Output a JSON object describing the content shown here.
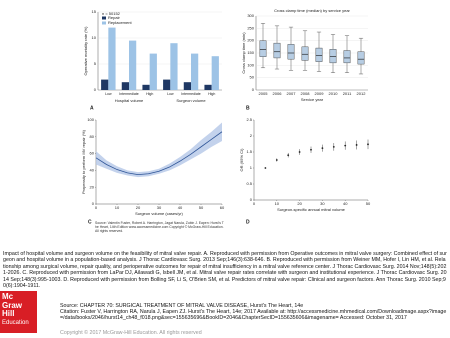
{
  "chart_data": [
    {
      "type": "bar",
      "panel": "A",
      "y_label": "Operative mortality rate (%)",
      "legend_title": "n = 50152",
      "categories": [
        "Low",
        "Intermediate",
        "High",
        "Low",
        "Intermediate",
        "High"
      ],
      "groups": [
        "Hospital volume",
        "Surgeon volume"
      ],
      "series": [
        {
          "name": "Repair",
          "color": "#1f3864",
          "values": [
            2,
            1.5,
            1,
            2,
            1.5,
            1
          ]
        },
        {
          "name": "Replacement",
          "color": "#9dc3e6",
          "values": [
            12,
            9.5,
            7,
            9,
            7,
            6.5
          ]
        }
      ],
      "ylim": [
        0,
        15
      ],
      "yticks": [
        0,
        5,
        10,
        15
      ],
      "grid": true
    },
    {
      "type": "box",
      "panel": "B",
      "title": "Cross clamp time (median) by service year",
      "x_label": "Service year",
      "y_label": "Cross clamp time (min)",
      "categories": [
        "2005",
        "2006",
        "2007",
        "2008",
        "2009",
        "2010",
        "2011",
        "2012"
      ],
      "min": [
        90,
        85,
        80,
        80,
        75,
        70,
        70,
        65
      ],
      "q1": [
        135,
        130,
        125,
        120,
        115,
        110,
        110,
        105
      ],
      "median": [
        165,
        155,
        150,
        145,
        140,
        135,
        130,
        125
      ],
      "q3": [
        200,
        190,
        185,
        175,
        170,
        165,
        160,
        155
      ],
      "max": [
        270,
        260,
        255,
        240,
        235,
        225,
        220,
        210
      ],
      "color": "#b7cde3",
      "ylim": [
        0,
        300
      ],
      "yticks": [
        0,
        50,
        100,
        150,
        200,
        250,
        300
      ],
      "grid": true
    },
    {
      "type": "band",
      "panel": "C",
      "x_label": "Surgeon volume (cases/yr)",
      "y_label": "Propensity to perform MV repair (%)",
      "x": [
        0,
        5,
        10,
        15,
        20,
        25,
        30,
        35,
        40,
        45,
        50,
        55,
        60
      ],
      "values": [
        55,
        47,
        41,
        37,
        35,
        36,
        39,
        44,
        51,
        59,
        68,
        77,
        86
      ],
      "lower": [
        47,
        42,
        37,
        34,
        32,
        33,
        36,
        40,
        46,
        53,
        60,
        68,
        75
      ],
      "upper": [
        63,
        52,
        45,
        40,
        38,
        39,
        42,
        48,
        56,
        65,
        76,
        86,
        97
      ],
      "color": "#2f5597",
      "band_color": "#b4c7e7",
      "xlim": [
        0,
        60
      ],
      "xticks": [
        0,
        10,
        20,
        30,
        40,
        50,
        60
      ],
      "ylim": [
        0,
        100
      ],
      "yticks": [
        0,
        20,
        40,
        60,
        80,
        100
      ]
    },
    {
      "type": "errorbar",
      "panel": "D",
      "x_label": "Surgeon-specific annual mitral volume",
      "y_label": "OR (95% CI)",
      "x": [
        5,
        10,
        15,
        20,
        25,
        30,
        35,
        40,
        45,
        50
      ],
      "values": [
        1,
        1.25,
        1.4,
        1.5,
        1.57,
        1.62,
        1.66,
        1.7,
        1.72,
        1.74
      ],
      "errors": [
        0,
        0.05,
        0.07,
        0.09,
        0.1,
        0.11,
        0.12,
        0.13,
        0.14,
        0.15
      ],
      "color": "#222222",
      "xlim": [
        0,
        50
      ],
      "xticks": [
        0,
        10,
        20,
        30,
        40,
        50
      ],
      "ylim": [
        0,
        2.5
      ],
      "yticks": [
        0,
        0.5,
        1,
        1.5,
        2,
        2.5
      ]
    }
  ],
  "figure_source": "Source: Valentin Fuster, Robert A. Harrington, Jagat Narula, Zubin J. Eapen: Hurst's The Heart, 14th Edition www.accessmedicine.com Copyright © McGraw-Hill Education. All rights reserved.",
  "caption": "Impact of hospital volume and surgeon volume on the feasibility of mitral valve repair. A. Reproduced with permission from Operative outcomes in mitral valve surgery: Combined effect of surgeon and hospital volume in a population-based analysis. J Thorac Cardiovasc Surg. 2013 Sep;146(3):638-646. B. Reproduced with permission from Weiner MM, Hofer I, Lin HM, et al. Relationship among surgical volume, repair quality, and perioperative outcomes for repair of mitral insufficiency in a mitral valve reference center. J Thorac Cardiovasc Surg. 2014 Nov;148(5):2021-2026. C. Reproduced with permission from LaPar DJ, Ailawadi G, Isbell JM, et al. Mitral valve repair rates correlate with surgeon and institutional experience. J Thorac Cardiovasc Surg. 2014 Sep;148(3):995-1003. D. Reproduced with permission from Bolling SF, Li S, O'Brien SM, et al. Predictors of mitral valve repair: Clinical and surgeon factors. Ann Thorac Surg. 2010 Sep;90(6):1904-1911.",
  "source": "Source: CHAPTER 70: SURGICAL TREATMENT OF MITRAL VALVE DISEASE, Hurst's The Heart, 14e",
  "citation": "Citation: Fuster V, Harrington RA, Narula J, Eapen ZJ. Hurst's The Heart, 14e; 2017 Available at: http://accessmedicine.mhmedical.com/Downloadimage.aspx?image=/data/books/2046/hurst14_ch48_f018.png&sec=155635696&BookID=2046&ChapterSecID=155635606&imagename= Accessed: October 31, 2017",
  "copyright": "Copyright © 2017 McGraw-Hill Education. All rights reserved",
  "logo": [
    "Mc",
    "Graw",
    "Hill",
    "Education"
  ]
}
